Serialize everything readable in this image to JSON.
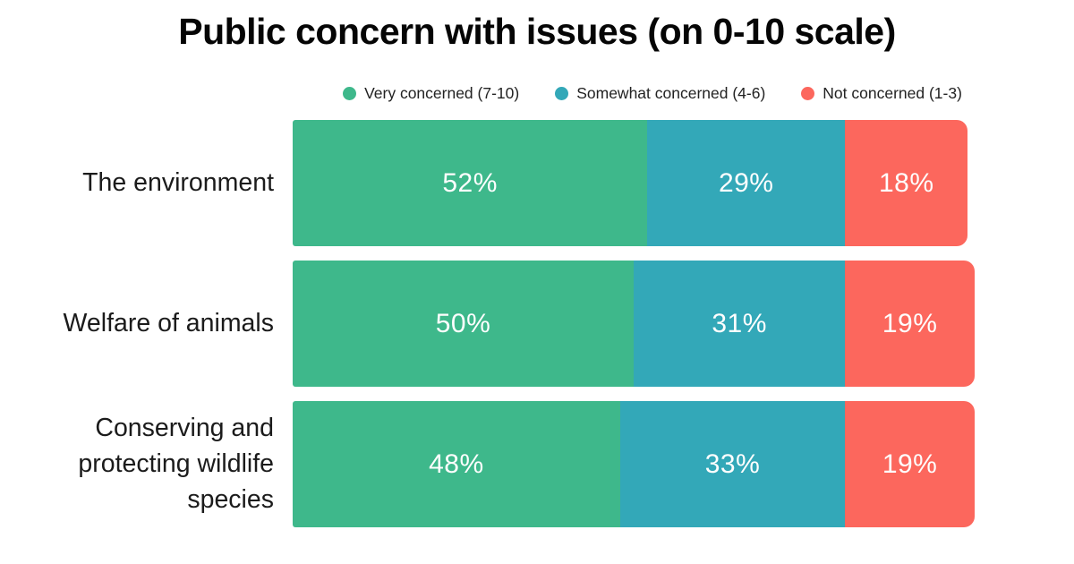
{
  "title": "Public concern with issues (on 0-10 scale)",
  "legend": [
    {
      "label": "Very concerned (7-10)",
      "color": "#3eb88b"
    },
    {
      "label": "Somewhat concerned (4-6)",
      "color": "#33a8b8"
    },
    {
      "label": "Not concerned (1-3)",
      "color": "#fc675d"
    }
  ],
  "chart_data": {
    "type": "bar",
    "orientation": "horizontal",
    "stacked": true,
    "title": "Public concern with issues (on 0-10 scale)",
    "categories": [
      "The environment",
      "Welfare of animals",
      "Conserving and protecting wildlife species"
    ],
    "series": [
      {
        "name": "Very concerned (7-10)",
        "color": "#3eb88b",
        "values": [
          52,
          50,
          48
        ]
      },
      {
        "name": "Somewhat concerned (4-6)",
        "color": "#33a8b8",
        "values": [
          29,
          31,
          33
        ]
      },
      {
        "name": "Not concerned (1-3)",
        "color": "#fc675d",
        "values": [
          18,
          19,
          19
        ]
      }
    ],
    "value_suffix": "%",
    "xlim": [
      0,
      100
    ],
    "grid": false,
    "legend_position": "top",
    "value_labels": "inside-center",
    "text_color": "#ffffff"
  }
}
